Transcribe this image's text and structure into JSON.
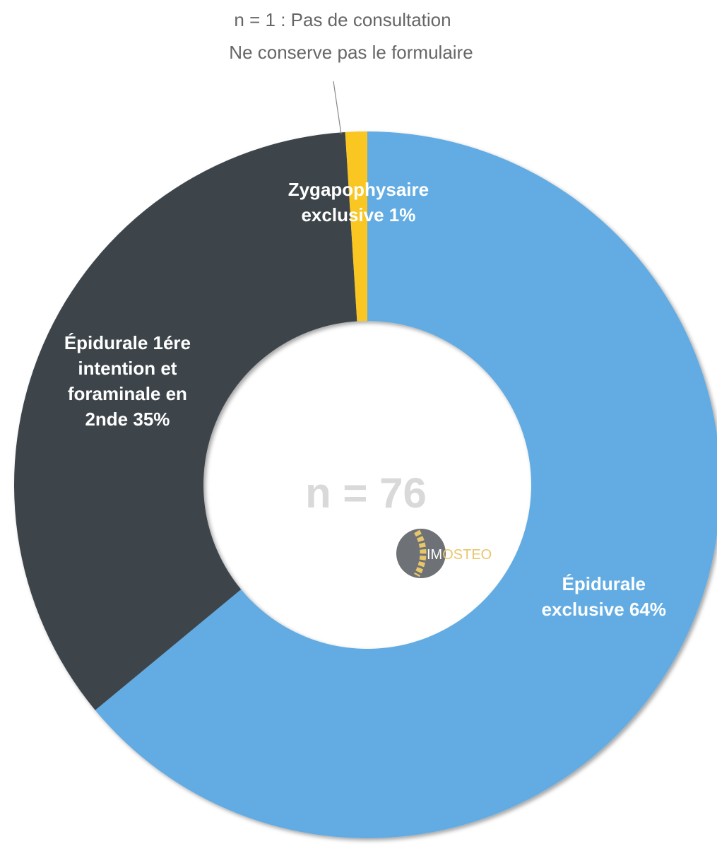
{
  "chart_data": {
    "type": "donut",
    "annotation": [
      "n = 1 : Pas de consultation",
      "Ne conserve pas le formulaire"
    ],
    "center_label": "n = 76",
    "logo": [
      "IM",
      "OSTEO"
    ],
    "categories": [
      "Épidurale exclusive",
      "Épidurale 1ére intention et foraminale en 2nde",
      "Zygapophysaire exclusive"
    ],
    "values": [
      64,
      35,
      1
    ],
    "value_labels": [
      "64%",
      "35%",
      "1%"
    ],
    "colors": [
      "#62ace3",
      "#3e444c",
      "#f9c623"
    ]
  }
}
